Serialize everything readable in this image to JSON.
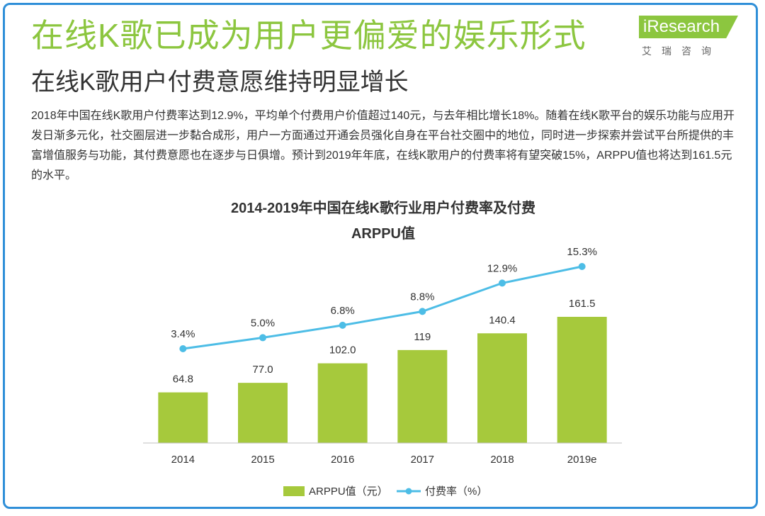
{
  "header": {
    "title": "在线K歌已成为用户更偏爱的娱乐形式",
    "subtitle": "在线K歌用户付费意愿维持明显增长"
  },
  "logo": {
    "name": "iResearch",
    "cn": "艾瑞咨询"
  },
  "paragraph": "2018年中国在线K歌用户付费率达到12.9%，平均单个付费用户价值超过140元，与去年相比增长18%。随着在线K歌平台的娱乐功能与应用开发日渐多元化，社交圈层进一步黏合成形，用户一方面通过开通会员强化自身在平台社交圈中的地位，同时进一步探索并尝试平台所提供的丰富增值服务与功能，其付费意愿也在逐步与日俱增。预计到2019年年底，在线K歌用户的付费率将有望突破15%，ARPPU值也将达到161.5元的水平。",
  "colors": {
    "accent_green": "#8cc63f",
    "bar_green": "#a6c93c",
    "line_blue": "#4dbde6",
    "frame_blue": "#2f8fd8"
  },
  "chart_data": {
    "type": "bar",
    "title_lines": [
      "2014-2019年中国在线K歌行业用户付费率及付费",
      "ARPPU值"
    ],
    "categories": [
      "2014",
      "2015",
      "2016",
      "2017",
      "2018",
      "2019e"
    ],
    "series": [
      {
        "name": "ARPPU值（元）",
        "type": "bar",
        "values": [
          64.8,
          77.0,
          102.0,
          119,
          140.4,
          161.5
        ],
        "labels": [
          "64.8",
          "77.0",
          "102.0",
          "119",
          "140.4",
          "161.5"
        ]
      },
      {
        "name": "付费率（%）",
        "type": "line",
        "values": [
          3.4,
          5.0,
          6.8,
          8.8,
          12.9,
          15.3
        ],
        "labels": [
          "3.4%",
          "5.0%",
          "6.8%",
          "8.8%",
          "12.9%",
          "15.3%"
        ]
      }
    ],
    "legend_position": "bottom",
    "grid": false
  }
}
